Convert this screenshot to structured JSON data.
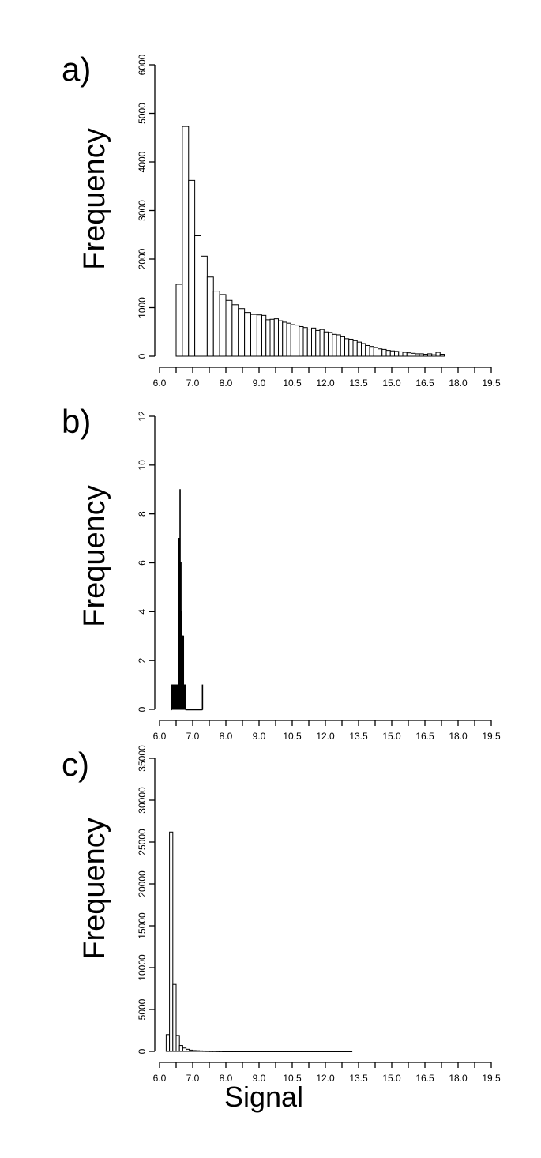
{
  "xlabel": "Signal",
  "chart_data": [
    {
      "panel": "a)",
      "type": "bar",
      "ylabel": "Frequency",
      "ylim": [
        0,
        6000
      ],
      "yticks": [
        0,
        1000,
        2000,
        3000,
        4000,
        5000,
        6000
      ],
      "xlim": [
        6.0,
        19.5
      ],
      "xticks": [
        "6.0",
        "7.0",
        "8.0",
        "9.0",
        "10.5",
        "12.0",
        "13.5",
        "15.0",
        "16.5",
        "18.0",
        "19.5"
      ],
      "bin_start": 6.5,
      "bin_width": 0.1875,
      "values": [
        1480,
        4730,
        3620,
        2480,
        2060,
        1630,
        1340,
        1270,
        1150,
        1060,
        980,
        900,
        860,
        850,
        840,
        750,
        760,
        770,
        730,
        700,
        680,
        650,
        640,
        610,
        590,
        560,
        580,
        530,
        550,
        500,
        490,
        450,
        440,
        400,
        360,
        350,
        320,
        290,
        260,
        220,
        200,
        180,
        150,
        140,
        120,
        110,
        100,
        90,
        80,
        70,
        60,
        50,
        50,
        40,
        50,
        30,
        80,
        40
      ]
    },
    {
      "panel": "b)",
      "type": "bar",
      "ylabel": "Frequency",
      "ylim": [
        0,
        12
      ],
      "yticks": [
        0,
        2,
        4,
        6,
        8,
        10,
        12
      ],
      "xlim": [
        6.0,
        19.5
      ],
      "xticks": [
        "6.0",
        "7.0",
        "8.0",
        "9.0",
        "10.5",
        "12.0",
        "13.5",
        "15.0",
        "16.5",
        "18.0",
        "19.5"
      ],
      "bin_start": 6.35,
      "bin_width": 0.0125,
      "values": [
        0,
        1,
        1,
        1,
        1,
        1,
        1,
        1,
        1,
        1,
        1,
        1,
        1,
        1,
        1,
        1,
        1,
        7,
        7,
        5,
        7,
        9,
        5,
        6,
        3,
        4,
        3,
        3,
        3,
        3,
        1,
        1,
        1,
        1,
        1,
        0,
        0,
        0,
        0,
        0,
        0,
        0,
        0,
        0,
        0,
        0,
        0,
        0,
        0,
        0,
        0,
        0,
        0,
        0,
        0,
        0,
        0,
        0,
        0,
        0,
        0,
        0,
        0,
        0,
        0,
        0,
        0,
        0,
        0,
        0,
        0,
        0,
        0,
        0,
        0,
        1
      ]
    },
    {
      "panel": "c)",
      "type": "bar",
      "ylabel": "Frequency",
      "ylim": [
        0,
        35000
      ],
      "yticks": [
        0,
        5000,
        10000,
        15000,
        20000,
        25000,
        30000,
        35000
      ],
      "xlim": [
        6.0,
        19.5
      ],
      "xticks": [
        "6.0",
        "7.0",
        "8.0",
        "9.0",
        "10.5",
        "12.0",
        "13.5",
        "15.0",
        "16.5",
        "18.0",
        "19.5"
      ],
      "bin_start": 6.2,
      "bin_width": 0.1,
      "values": [
        2000,
        26200,
        8000,
        1900,
        700,
        400,
        250,
        150,
        100,
        80,
        60,
        50,
        40,
        30,
        30,
        20,
        20,
        10,
        10,
        10,
        10,
        10,
        10,
        10,
        10,
        10,
        10,
        10,
        10,
        10,
        10,
        10,
        10,
        10,
        10,
        10,
        10,
        10,
        10,
        10,
        10,
        10,
        10,
        10,
        10,
        10,
        10,
        10,
        10,
        10,
        10,
        10,
        10,
        10,
        10,
        10,
        10,
        10,
        10,
        10,
        10,
        10,
        10,
        10,
        10,
        10,
        10,
        10,
        10,
        10
      ]
    }
  ]
}
